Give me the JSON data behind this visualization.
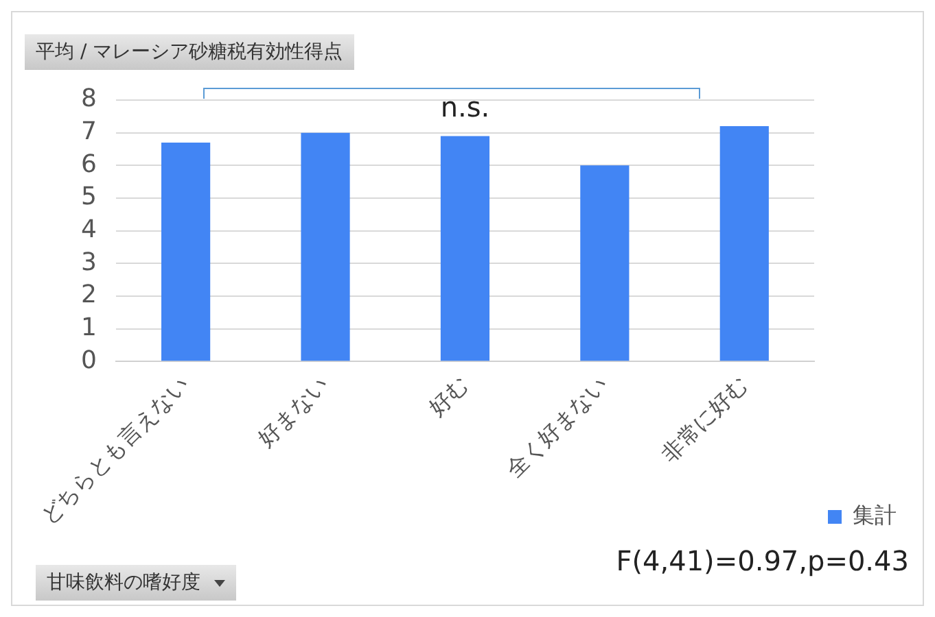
{
  "chart_data": {
    "type": "bar",
    "title": "平均 / マレーシア砂糖税有効性得点",
    "xlabel": "甘味飲料の嗜好度",
    "categories": [
      "どちらとも言えない",
      "好まない",
      "好む",
      "全く好まない",
      "非常に好む"
    ],
    "series": [
      {
        "name": "集計",
        "color": "#4285f4",
        "values": [
          6.7,
          7.0,
          6.9,
          6.0,
          7.2
        ]
      }
    ],
    "ylim": [
      0,
      8
    ],
    "yticks": [
      0,
      1,
      2,
      3,
      4,
      5,
      6,
      7,
      8
    ],
    "grid": "y",
    "legend": "right",
    "annotations": [
      "n.s.",
      "F(4,41)=0.97,p=0.43"
    ]
  }
}
